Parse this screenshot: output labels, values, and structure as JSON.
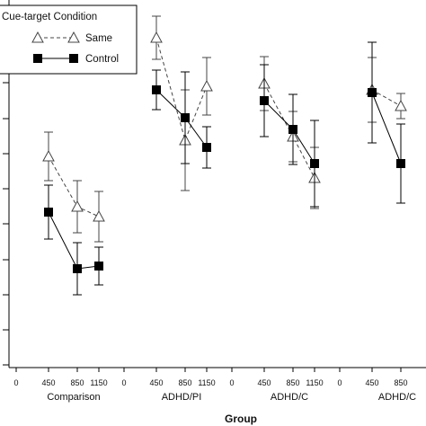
{
  "chart_data": {
    "type": "line",
    "xlabel": "Group",
    "legend": {
      "title": "Cue-target Condition",
      "placement": "top-left"
    },
    "groups": [
      {
        "name": "Comparison",
        "ticks": [
          "0",
          "450",
          "850",
          "1150"
        ]
      },
      {
        "name": "ADHD/PI",
        "ticks": [
          "0",
          "450",
          "850",
          "1150"
        ]
      },
      {
        "name": "ADHD/C",
        "ticks": [
          "0",
          "450",
          "850",
          "1150"
        ]
      },
      {
        "name": "ADHD/C",
        "ticks": [
          "0",
          "450",
          "850"
        ]
      }
    ],
    "x_tick_values": [
      0,
      450,
      850,
      1150
    ],
    "series": [
      {
        "name": "Same",
        "marker": "open-triangle",
        "line": "dashed",
        "color": "#444444",
        "points": [
          {
            "group": 0,
            "x": 450,
            "y": 174,
            "err": 27
          },
          {
            "group": 0,
            "x": 850,
            "y": 230,
            "err": 29
          },
          {
            "group": 0,
            "x": 1150,
            "y": 241,
            "err": 28
          },
          {
            "group": 1,
            "x": 450,
            "y": 42,
            "err": 24
          },
          {
            "group": 1,
            "x": 850,
            "y": 156,
            "err": 56
          },
          {
            "group": 1,
            "x": 1150,
            "y": 96,
            "err": 32
          },
          {
            "group": 2,
            "x": 450,
            "y": 93,
            "err": 30
          },
          {
            "group": 2,
            "x": 850,
            "y": 152,
            "err": 28
          },
          {
            "group": 2,
            "x": 1150,
            "y": 198,
            "err": 34
          },
          {
            "group": 3,
            "x": 450,
            "y": 100,
            "err": 36
          },
          {
            "group": 3,
            "x": 850,
            "y": 118,
            "err": 14
          }
        ]
      },
      {
        "name": "Control",
        "marker": "filled-square",
        "line": "solid",
        "color": "#000000",
        "points": [
          {
            "group": 0,
            "x": 450,
            "y": 236,
            "err": 30
          },
          {
            "group": 0,
            "x": 850,
            "y": 299,
            "err": 29
          },
          {
            "group": 0,
            "x": 1150,
            "y": 296,
            "err": 21
          },
          {
            "group": 1,
            "x": 450,
            "y": 100,
            "err": 22
          },
          {
            "group": 1,
            "x": 850,
            "y": 131,
            "err": 51
          },
          {
            "group": 1,
            "x": 1150,
            "y": 164,
            "err": 23
          },
          {
            "group": 2,
            "x": 450,
            "y": 112,
            "err": 40
          },
          {
            "group": 2,
            "x": 850,
            "y": 144,
            "err": 39
          },
          {
            "group": 2,
            "x": 1150,
            "y": 182,
            "err": 48
          },
          {
            "group": 3,
            "x": 450,
            "y": 103,
            "err": 56
          },
          {
            "group": 3,
            "x": 850,
            "y": 182,
            "err": 44
          }
        ]
      }
    ]
  }
}
